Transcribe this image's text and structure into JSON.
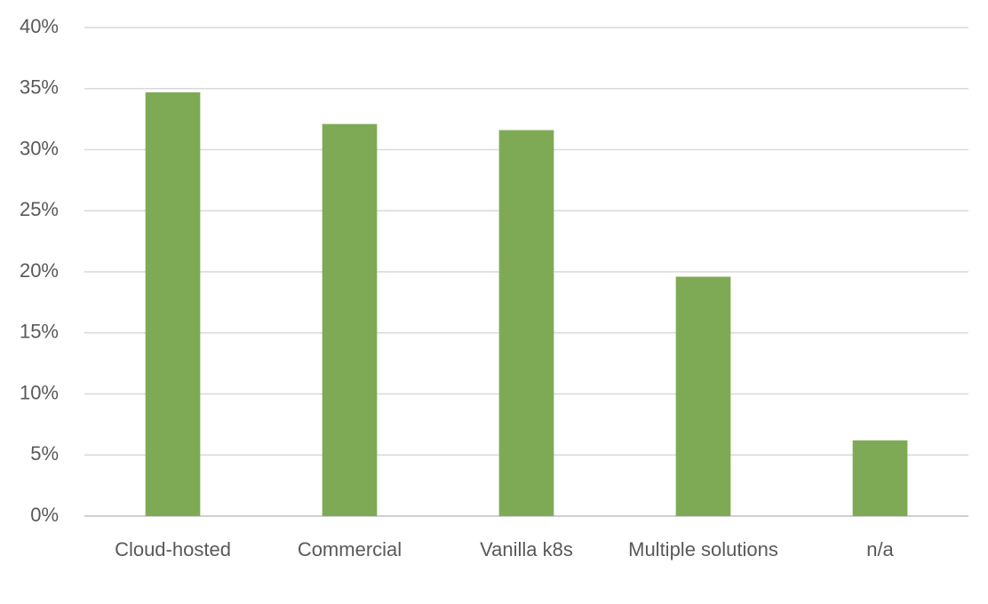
{
  "chart_data": {
    "type": "bar",
    "categories": [
      "Cloud-hosted",
      "Commercial",
      "Vanilla k8s",
      "Multiple solutions",
      "n/a"
    ],
    "values": [
      34.7,
      32.1,
      31.6,
      19.6,
      6.2
    ],
    "color": "#7faa55",
    "ylim": [
      0,
      40
    ],
    "yticks": [
      {
        "value": 0,
        "label": "0%"
      },
      {
        "value": 5,
        "label": "5%"
      },
      {
        "value": 10,
        "label": "10%"
      },
      {
        "value": 15,
        "label": "15%"
      },
      {
        "value": 20,
        "label": "20%"
      },
      {
        "value": 25,
        "label": "25%"
      },
      {
        "value": 30,
        "label": "30%"
      },
      {
        "value": 35,
        "label": "35%"
      },
      {
        "value": 40,
        "label": "40%"
      }
    ],
    "grid": true
  }
}
